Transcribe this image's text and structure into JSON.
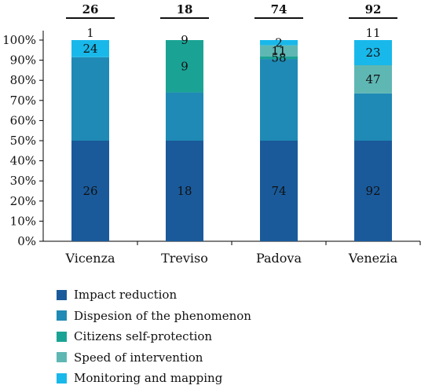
{
  "chart_data": {
    "type": "bar",
    "stacked": true,
    "title": "",
    "xlabel": "",
    "ylabel": "",
    "categories": [
      "Vicenza",
      "Treviso",
      "Padova",
      "Venezia"
    ],
    "totals": [
      "26",
      "18",
      "74",
      "92"
    ],
    "ylim": [
      0,
      100
    ],
    "yticks": [
      "0%",
      "10%",
      "20%",
      "30%",
      "40%",
      "50%",
      "60%",
      "70%",
      "80%",
      "90%",
      "100%"
    ],
    "grid": false,
    "legend_position": "bottom-left",
    "series": [
      {
        "name": "Impact reduction",
        "color": "#1a5a9a",
        "percents": [
          50,
          50,
          50,
          50
        ],
        "labels": [
          "26",
          "18",
          "74",
          "92"
        ]
      },
      {
        "name": "Dispesion of the phenomenon",
        "color": "#1f8ab5",
        "percents": [
          41.5,
          24,
          40.6,
          23.5
        ],
        "labels": [
          "",
          "",
          "",
          ""
        ]
      },
      {
        "name": "Citizens self-protection",
        "color": "#1aa394",
        "percents": [
          0,
          26,
          1.2,
          0
        ],
        "labels": [
          "",
          "9",
          "58",
          ""
        ]
      },
      {
        "name": "Speed of intervention",
        "color": "#5fb7b4",
        "percents": [
          0,
          0,
          5.6,
          14
        ],
        "labels": [
          "",
          "",
          "11",
          "47"
        ]
      },
      {
        "name": "Monitoring and mapping",
        "color": "#19b8ea",
        "percents": [
          8.5,
          0,
          2.6,
          12.5
        ],
        "labels": [
          "24",
          "9",
          "2",
          "23"
        ]
      }
    ],
    "top_labels": [
      "1",
      "",
      "",
      "11"
    ]
  }
}
